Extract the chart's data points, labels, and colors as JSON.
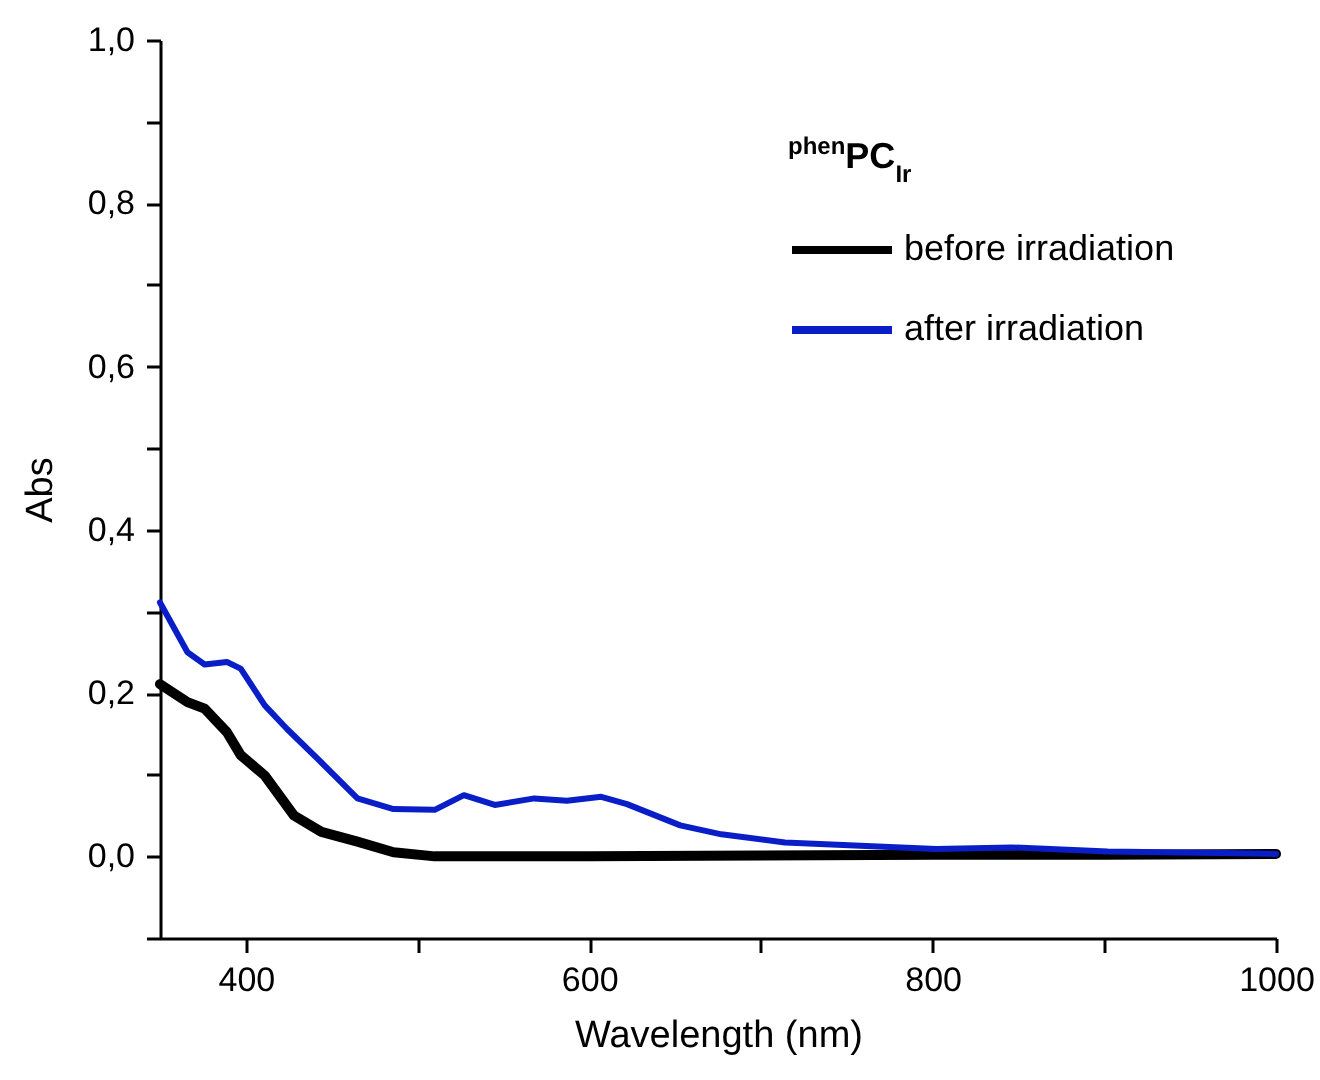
{
  "chart_data": {
    "type": "line",
    "xlabel": "Wavelength (nm)",
    "ylabel": "Abs",
    "legend_title": "$^{phen}$PC$_{Ir}$",
    "legend": "top right",
    "line_style": "solid",
    "grid": false,
    "xlim": [
      350,
      1000
    ],
    "xticks": [
      400,
      {
        "value": 500,
        "label": null
      },
      600,
      {
        "value": 700,
        "label": null
      },
      800,
      {
        "value": 900,
        "label": null
      },
      1000
    ],
    "ylim": [
      -0.1,
      1.0
    ],
    "yticks": [
      {
        "value": -0.1,
        "label": null
      },
      {
        "value": 0,
        "label": "0,0"
      },
      {
        "value": 0.1,
        "label": null
      },
      {
        "value": 0.2,
        "label": "0,2"
      },
      {
        "value": 0.3,
        "label": null
      },
      {
        "value": 0.4,
        "label": "0,4"
      },
      {
        "value": 0.5,
        "label": null
      },
      {
        "value": 0.6,
        "label": "0,6"
      },
      {
        "value": 0.7,
        "label": null
      },
      {
        "value": 0.8,
        "label": "0,8"
      },
      {
        "value": 0.9,
        "label": null
      },
      {
        "value": 1.0,
        "label": "1,0"
      }
    ],
    "series": [
      {
        "name": "before irradiation",
        "color": "#000000",
        "x": [
          350,
          366,
          376,
          389,
          397,
          411,
          428,
          444,
          465,
          486,
          510,
          600,
          700,
          800,
          900,
          1000
        ],
        "values": [
          0.211,
          0.189,
          0.181,
          0.152,
          0.124,
          0.099,
          0.05,
          0.03,
          0.018,
          0.005,
          0.0,
          0.0,
          0.001,
          0.002,
          0.002,
          0.003
        ]
      },
      {
        "name": "after irradiation",
        "color": "#0a1ec8",
        "x": [
          350,
          366,
          376,
          389,
          397,
          411,
          424,
          444,
          465,
          486,
          510,
          527,
          545,
          568,
          587,
          607,
          622,
          653,
          677,
          714,
          802,
          846,
          902,
          1000
        ],
        "values": [
          0.311,
          0.25,
          0.235,
          0.238,
          0.23,
          0.185,
          0.156,
          0.115,
          0.071,
          0.058,
          0.057,
          0.075,
          0.063,
          0.071,
          0.068,
          0.073,
          0.064,
          0.038,
          0.027,
          0.017,
          0.009,
          0.011,
          0.006,
          0.003
        ]
      }
    ]
  }
}
